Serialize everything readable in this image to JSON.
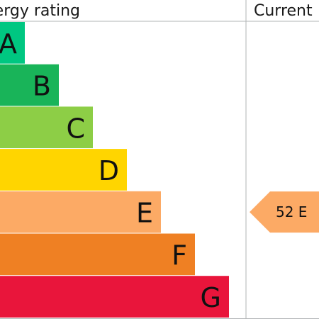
{
  "chart_data": {
    "type": "bar",
    "title": "",
    "columns": {
      "rating_header": "Energy rating",
      "current_header": "Current"
    },
    "bands": [
      {
        "letter": "A",
        "color": "#00c781"
      },
      {
        "letter": "B",
        "color": "#19b459"
      },
      {
        "letter": "C",
        "color": "#8dce46"
      },
      {
        "letter": "D",
        "color": "#ffd500"
      },
      {
        "letter": "E",
        "color": "#fcaa65"
      },
      {
        "letter": "F",
        "color": "#ef8023"
      },
      {
        "letter": "G",
        "color": "#e9153b"
      }
    ],
    "current": {
      "score": 52,
      "band": "E",
      "label": "52  E",
      "color": "#fcaa65"
    },
    "grid_color": "#b1b4b6"
  }
}
